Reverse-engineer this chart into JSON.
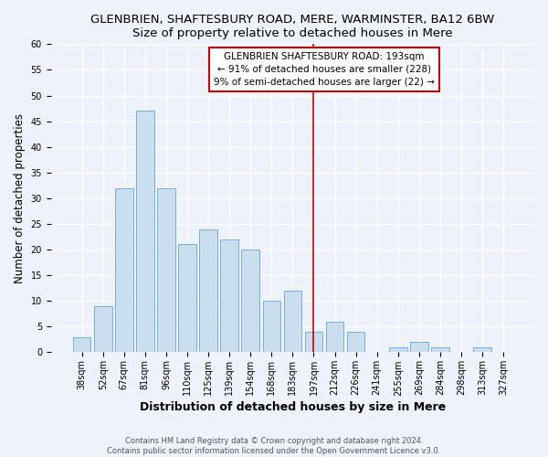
{
  "title": "GLENBRIEN, SHAFTESBURY ROAD, MERE, WARMINSTER, BA12 6BW",
  "subtitle": "Size of property relative to detached houses in Mere",
  "xlabel": "Distribution of detached houses by size in Mere",
  "ylabel": "Number of detached properties",
  "bar_labels": [
    "38sqm",
    "52sqm",
    "67sqm",
    "81sqm",
    "96sqm",
    "110sqm",
    "125sqm",
    "139sqm",
    "154sqm",
    "168sqm",
    "183sqm",
    "197sqm",
    "212sqm",
    "226sqm",
    "241sqm",
    "255sqm",
    "269sqm",
    "284sqm",
    "298sqm",
    "313sqm",
    "327sqm"
  ],
  "bar_values": [
    3,
    9,
    32,
    47,
    32,
    21,
    24,
    22,
    20,
    10,
    12,
    4,
    6,
    4,
    0,
    1,
    2,
    1,
    0,
    1,
    0
  ],
  "bar_color": "#c9dff0",
  "bar_edge_color": "#7aaed6",
  "vline_color": "#cc0000",
  "vline_x": 11,
  "ylim": [
    0,
    60
  ],
  "yticks": [
    0,
    5,
    10,
    15,
    20,
    25,
    30,
    35,
    40,
    45,
    50,
    55,
    60
  ],
  "annotation_title": "GLENBRIEN SHAFTESBURY ROAD: 193sqm",
  "annotation_line1": "← 91% of detached houses are smaller (228)",
  "annotation_line2": "9% of semi-detached houses are larger (22) →",
  "footer_line1": "Contains HM Land Registry data © Crown copyright and database right 2024.",
  "footer_line2": "Contains public sector information licensed under the Open Government Licence v3.0.",
  "bg_color": "#eef2fb",
  "grid_color": "#ffffff",
  "title_fontsize": 9.5,
  "subtitle_fontsize": 9,
  "xlabel_fontsize": 9,
  "ylabel_fontsize": 8.5,
  "tick_fontsize": 7,
  "footer_fontsize": 6
}
